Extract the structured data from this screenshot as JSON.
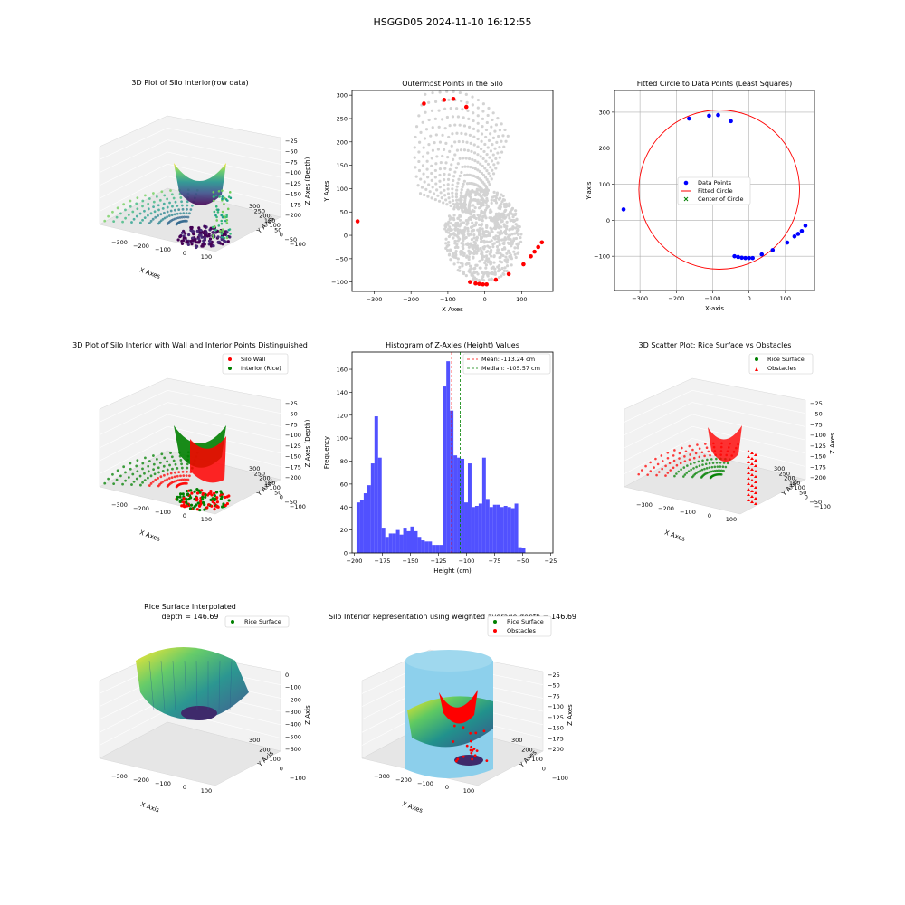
{
  "suptitle": "HSGGD05 2024-11-10 16:12:55",
  "chart_data": [
    {
      "id": "p3d1",
      "type": "scatter3d",
      "title": "3D Plot of Silo Interior(row data)",
      "xlabel": "X Axes",
      "ylabel": "Y Axes",
      "zlabel": "Z Axes (Depth)",
      "xticks": [
        "−300",
        "−200",
        "−100",
        "0",
        "100"
      ],
      "yticks": [
        "−100",
        "−50",
        "0",
        "50",
        "100",
        "150",
        "200",
        "250",
        "300"
      ],
      "zticks": [
        "−25",
        "−50",
        "−75",
        "−100",
        "−125",
        "−150",
        "−175",
        "−200"
      ],
      "colormap": "viridis"
    },
    {
      "id": "p2",
      "type": "scatter",
      "title": "Outermost Points in the Silo",
      "xlabel": "X Axes",
      "ylabel": "Y Axes",
      "xlim": [
        -360,
        185
      ],
      "ylim": [
        -120,
        310
      ],
      "xticks": [
        -300,
        -200,
        -100,
        0,
        100
      ],
      "yticks": [
        -100,
        -50,
        0,
        50,
        100,
        150,
        200,
        250,
        300
      ],
      "all_points_color": "#d3d3d3",
      "outer_color": "#ff0000",
      "outermost_points": [
        [
          -345,
          30
        ],
        [
          -165,
          282
        ],
        [
          -110,
          290
        ],
        [
          -85,
          292
        ],
        [
          -50,
          275
        ],
        [
          -40,
          -100
        ],
        [
          -25,
          -103
        ],
        [
          -15,
          -104
        ],
        [
          -5,
          -105
        ],
        [
          5,
          -105
        ],
        [
          30,
          -95
        ],
        [
          65,
          -83
        ],
        [
          105,
          -62
        ],
        [
          125,
          -45
        ],
        [
          135,
          -35
        ],
        [
          145,
          -25
        ],
        [
          155,
          -15
        ]
      ]
    },
    {
      "id": "p3",
      "type": "scatter",
      "title": "Fitted Circle to Data Points (Least Squares)",
      "xlabel": "X-axis",
      "ylabel": "Y-axis",
      "xlim": [
        -370,
        180
      ],
      "ylim": [
        -195,
        360
      ],
      "xticks": [
        -300,
        -200,
        -100,
        0,
        100
      ],
      "yticks": [
        -100,
        0,
        100,
        200,
        300
      ],
      "grid": true,
      "legend": [
        "Data Points",
        "Fitted Circle",
        "Center of Circle"
      ],
      "circle": {
        "cx": -82,
        "cy": 85,
        "r": 221
      },
      "points": [
        [
          -345,
          30
        ],
        [
          -165,
          282
        ],
        [
          -110,
          290
        ],
        [
          -85,
          292
        ],
        [
          -50,
          275
        ],
        [
          -40,
          -100
        ],
        [
          -30,
          -102
        ],
        [
          -20,
          -104
        ],
        [
          -10,
          -105
        ],
        [
          0,
          -105
        ],
        [
          10,
          -105
        ],
        [
          35,
          -95
        ],
        [
          65,
          -83
        ],
        [
          105,
          -62
        ],
        [
          125,
          -45
        ],
        [
          135,
          -38
        ],
        [
          145,
          -30
        ],
        [
          155,
          -15
        ]
      ]
    },
    {
      "id": "p3d2",
      "type": "scatter3d",
      "title": "3D Plot of Silo Interior with Wall and Interior Points Distinguished",
      "xlabel": "X Axes",
      "ylabel": "Y Axes",
      "zlabel": "Z Axes (Depth)",
      "xticks": [
        "−300",
        "−200",
        "−100",
        "0",
        "100"
      ],
      "yticks": [
        "−100",
        "−50",
        "0",
        "50",
        "100",
        "150",
        "200",
        "250",
        "300"
      ],
      "zticks": [
        "−25",
        "−50",
        "−75",
        "−100",
        "−125",
        "−150",
        "−175",
        "−200"
      ],
      "legend": [
        "Silo Wall",
        "Interior (Rice)"
      ]
    },
    {
      "id": "p5",
      "type": "bar",
      "title": "Histogram of Z-Axies (Height) Values",
      "xlabel": "Height (cm)",
      "ylabel": "Frequency",
      "xlim": [
        -202,
        -23
      ],
      "ylim": [
        0,
        175
      ],
      "xticks": [
        -200,
        -175,
        -150,
        -125,
        -100,
        -75,
        -50,
        -25
      ],
      "yticks": [
        0,
        20,
        40,
        60,
        80,
        100,
        120,
        140,
        160
      ],
      "bin_start": -198,
      "bin_width": 3.2,
      "values": [
        44,
        46,
        52,
        59,
        78,
        119,
        83,
        22,
        14,
        17,
        17,
        20,
        16,
        22,
        19,
        23,
        19,
        14,
        11,
        10,
        10,
        7,
        7,
        7,
        145,
        167,
        124,
        85,
        83,
        82,
        44,
        78,
        40,
        41,
        43,
        83,
        47,
        40,
        42,
        42,
        40,
        41,
        40,
        39,
        43,
        5,
        4
      ],
      "mean": -113.24,
      "median": -105.57,
      "legend": [
        "Mean: -113.24 cm",
        "Median: -105.57 cm"
      ]
    },
    {
      "id": "p3d3",
      "type": "scatter3d",
      "title": "3D Scatter Plot: Rice Surface vs Obstacles",
      "xlabel": "X Axes",
      "ylabel": "Y Axes",
      "zlabel": "Z Axes",
      "xticks": [
        "−300",
        "−200",
        "−100",
        "0",
        "100"
      ],
      "yticks": [
        "−100",
        "−50",
        "0",
        "50",
        "100",
        "150",
        "200",
        "250",
        "300"
      ],
      "zticks": [
        "−25",
        "−50",
        "−75",
        "−100",
        "−125",
        "−150",
        "−175",
        "−200"
      ],
      "legend": [
        "Rice Surface",
        "Obstacles"
      ]
    },
    {
      "id": "p3d4",
      "type": "surface3d",
      "title": "Rice Surface Interpolated",
      "subtitle": "depth = 146.69",
      "xlabel": "X Axis",
      "ylabel": "Y Axis",
      "zlabel": "Z Axis",
      "xticks": [
        "−300",
        "−200",
        "−100",
        "0",
        "100"
      ],
      "yticks": [
        "−100",
        "0",
        "100",
        "200",
        "300"
      ],
      "zticks": [
        "0",
        "−100",
        "−200",
        "−300",
        "−400",
        "−500",
        "−600"
      ],
      "legend": [
        "Rice Surface"
      ]
    },
    {
      "id": "p3d5",
      "type": "surface3d",
      "title": "Silo Interior Representation using weighted average depth = 146.69",
      "xlabel": "X Axes",
      "ylabel": "Y Axes",
      "zlabel": "Z Axes",
      "xticks": [
        "−300",
        "−200",
        "−100",
        "0",
        "100"
      ],
      "yticks": [
        "−100",
        "0",
        "100",
        "200",
        "300"
      ],
      "zticks": [
        "−25",
        "−50",
        "−75",
        "−100",
        "−125",
        "−150",
        "−175",
        "−200"
      ],
      "legend": [
        "Rice Surface",
        "Obstacles"
      ]
    }
  ]
}
